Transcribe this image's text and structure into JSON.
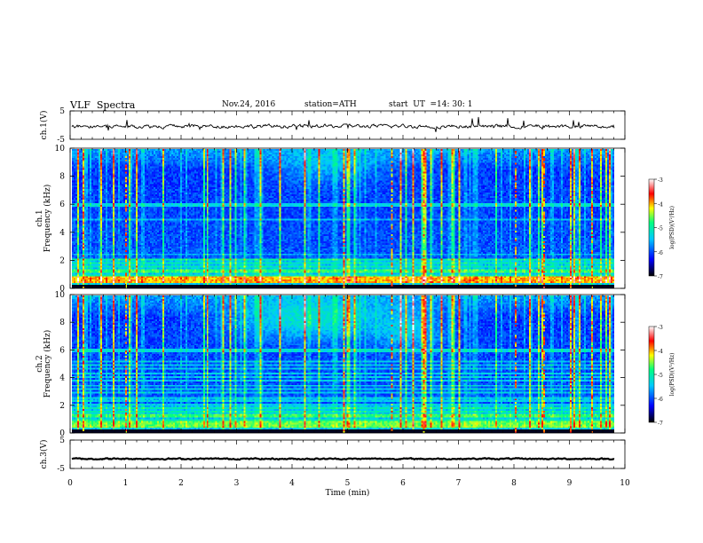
{
  "header": {
    "title": "VLF  Spectra",
    "date": "Nov.24, 2016",
    "station": "station=ATH",
    "start_label": "start  UT  =",
    "start_time": "14: 30: 1"
  },
  "chart_data": {
    "type": "heatmap",
    "x": {
      "label": "Time  (min)",
      "range": [
        0,
        10
      ],
      "ticks": [
        "0",
        "1",
        "2",
        "3",
        "4",
        "5",
        "6",
        "7",
        "8",
        "9",
        "10"
      ]
    },
    "panels": [
      {
        "id": "ch1",
        "type": "line",
        "ylabel": "ch.1(V)",
        "ylim": [
          -5,
          5
        ],
        "ticks": [
          "5",
          "-5"
        ],
        "baseline": -0.4
      },
      {
        "id": "ch1-spec",
        "type": "heatmap",
        "ylabel_top": "ch.1",
        "ylabel": "Frequency  (kHz)",
        "ylim": [
          0,
          10
        ],
        "ticks": [
          "0",
          "2",
          "4",
          "6",
          "8",
          "10"
        ]
      },
      {
        "id": "ch2-spec",
        "type": "heatmap",
        "ylabel_top": "ch.2",
        "ylabel": "Frequency  (kHz)",
        "ylim": [
          0,
          10
        ],
        "ticks": [
          "0",
          "2",
          "4",
          "6",
          "8",
          "10"
        ]
      },
      {
        "id": "ch3",
        "type": "line",
        "ylabel": "ch.3(V)",
        "ylim": [
          -5,
          5
        ],
        "ticks": [
          "5",
          "-5"
        ],
        "baseline": -1.6
      }
    ],
    "colorbar": {
      "label": "log(PSD)(V²/Hz)",
      "range": [
        -7,
        -3
      ],
      "ticks": [
        "-3",
        "-4",
        "-5",
        "-6",
        "-7"
      ],
      "colors": [
        "#000000",
        "#0000ff",
        "#00c8ff",
        "#00ff80",
        "#ffff00",
        "#ff0000",
        "#ffffff"
      ]
    },
    "grid": false,
    "legend": "none"
  }
}
